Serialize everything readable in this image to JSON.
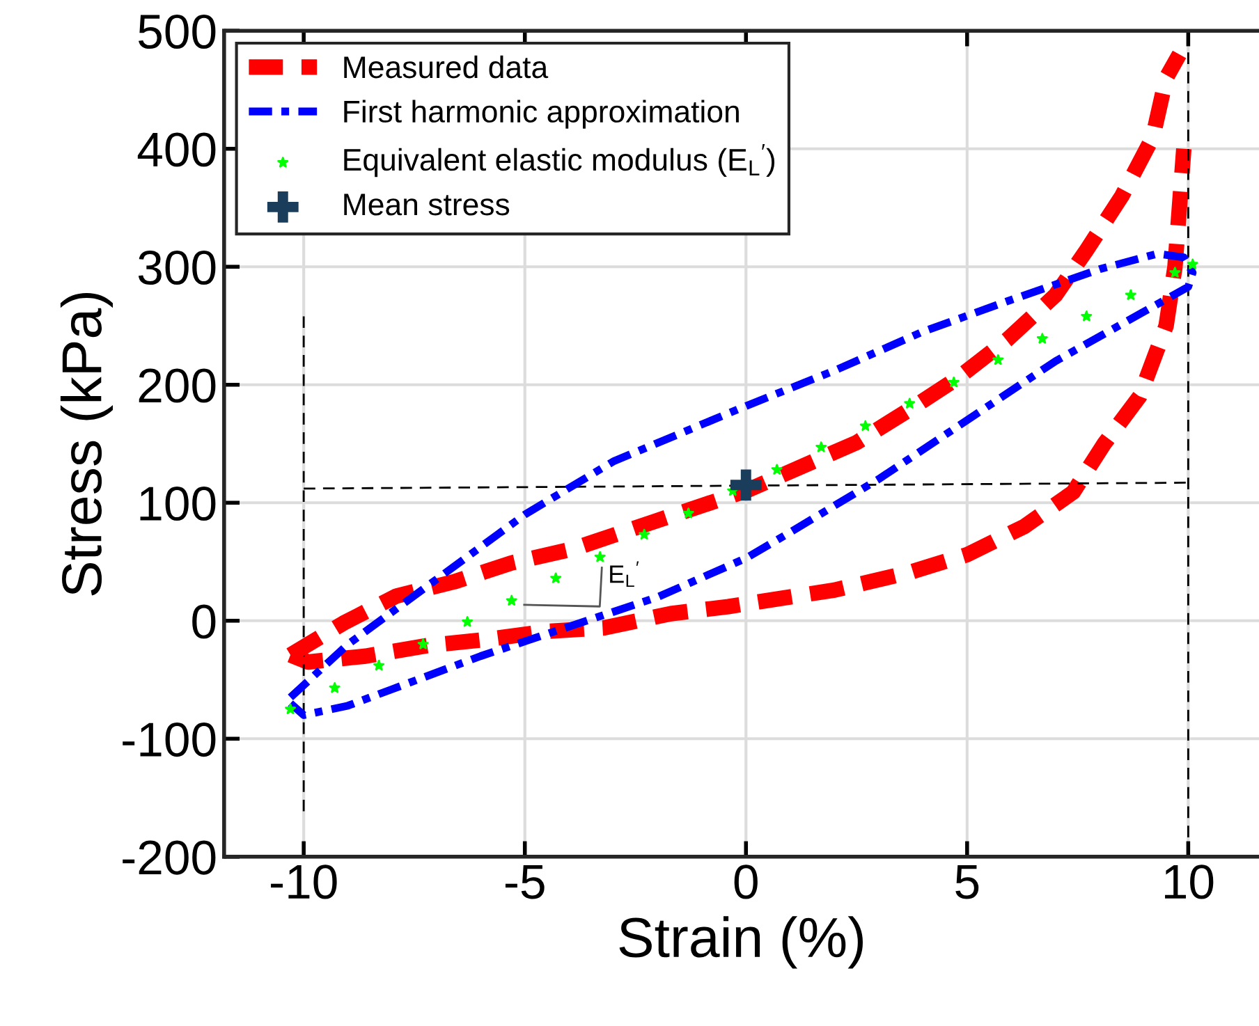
{
  "chart_data": {
    "type": "line",
    "xlabel": "Strain (%)",
    "ylabel": "Stress (kPa)",
    "xlim": [
      -11.8,
      11.6
    ],
    "ylim": [
      -200,
      500
    ],
    "xticks": [
      -10,
      -5,
      0,
      5,
      10
    ],
    "yticks": [
      -200,
      -100,
      0,
      100,
      200,
      300,
      400,
      500
    ],
    "grid": true,
    "legend": "top left",
    "series": [
      {
        "name": "Measured data",
        "color": "#ff0000",
        "line_style": "dashed",
        "x": [
          -10.3,
          -9.1,
          -7.9,
          -6.6,
          -5.3,
          -3.9,
          -2,
          0,
          2.5,
          3.7,
          4.8,
          5.9,
          7,
          7.7,
          8.5,
          9.2,
          9.5,
          9.8
        ],
        "values": [
          -29,
          -2,
          21,
          33,
          49,
          61,
          85,
          110,
          151,
          179,
          206,
          238,
          276,
          314,
          360,
          410,
          460,
          480
        ]
      },
      {
        "color": "#ff0000",
        "line_style": "dashed",
        "x": [
          -10.3,
          -9.9,
          -8.6,
          -7.2,
          -5.9,
          -4.5,
          -3.2,
          -1.7,
          -0.4,
          2,
          3.7,
          5,
          6.3,
          7.4,
          8.1,
          8.9,
          9.5,
          9.7,
          9.9
        ],
        "values": [
          -29,
          -35,
          -30,
          -21,
          -16,
          -9,
          -6,
          6,
          12,
          26,
          41,
          56,
          80,
          109,
          150,
          190,
          250,
          300,
          400
        ]
      },
      {
        "name": "First harmonic approximation",
        "color": "#0000ff",
        "line_style": "dashdot",
        "x": [
          -10.3,
          -9,
          -7,
          -5,
          -3,
          0,
          2,
          4,
          6,
          8,
          9.3,
          9.9,
          10.1,
          10,
          9,
          7,
          5,
          3,
          1,
          0,
          -2,
          -4,
          -6,
          -8,
          -9,
          -10,
          -10.3
        ],
        "values": [
          -65,
          -20,
          35,
          90,
          135,
          182,
          212,
          245,
          272,
          298,
          311,
          308,
          295,
          283,
          262,
          220,
          170,
          120,
          75,
          53,
          20,
          -5,
          -30,
          -58,
          -72,
          -80,
          -70
        ]
      },
      {
        "name": "Equivalent elastic modulus (E$_{L}$$^{′}$)",
        "color": "#00ff00",
        "type": "scatter",
        "marker": "star",
        "x": [
          -10.3,
          -9.3,
          -8.3,
          -7.3,
          -6.3,
          -5.3,
          -4.3,
          -3.3,
          -2.3,
          -1.3,
          -0.3,
          0.7,
          1.7,
          2.7,
          3.7,
          4.7,
          5.7,
          6.7,
          7.7,
          8.7,
          9.7,
          10.1
        ],
        "values": [
          -75,
          -57,
          -38,
          -20,
          -1,
          17,
          36,
          54,
          73,
          91,
          110,
          128,
          147,
          165,
          184,
          202,
          221,
          239,
          258,
          276,
          295,
          302
        ]
      },
      {
        "name": "Mean stress",
        "color": "#1a3d5c",
        "type": "scatter",
        "marker": "cross",
        "x": [
          0
        ],
        "values": [
          115
        ]
      },
      {
        "color": "#000000",
        "line_style": "dashed",
        "x": [
          -10,
          -10
        ],
        "values": [
          258,
          -165
        ]
      },
      {
        "color": "#000000",
        "line_style": "dashed",
        "x": [
          -10,
          10
        ],
        "values": [
          112,
          117
        ]
      }
    ],
    "ref_lines": [
      {
        "axis": "x",
        "value": 10,
        "color": "#000000",
        "line_style": "dashed"
      }
    ],
    "annotations": [
      "E$_{L}$$^{′}$"
    ]
  }
}
